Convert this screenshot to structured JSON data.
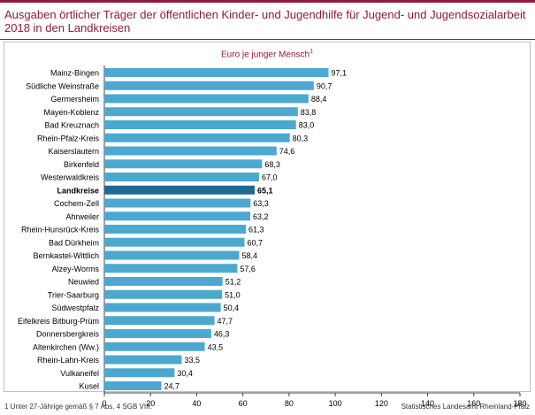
{
  "title": "Ausgaben örtlicher Träger der öffentlichen Kinder- und Jugendhilfe für Jugend- und Jugendsozialarbeit 2018 in den Landkreisen",
  "subtitle": "Euro je junger Mensch",
  "subtitle_marker": "1",
  "footnote": "1 Unter 27-Jährige gemäß § 7 Abs. 4 SGB VIII.",
  "source": "Statistisches Landesamt Rheinland-Pfalz",
  "colors": {
    "bar": "#4da8d0",
    "highlight": "#1f6a95",
    "accent": "#8e1b39"
  },
  "chart_data": {
    "type": "bar",
    "orientation": "horizontal",
    "title": "Euro je junger Mensch",
    "categories": [
      "Mainz-Bingen",
      "Südliche Weinstraße",
      "Germersheim",
      "Mayen-Koblenz",
      "Bad Kreuznach",
      "Rhein-Pfalz-Kreis",
      "Kaiserslautern",
      "Birkenfeld",
      "Westerwaldkreis",
      "Landkreise",
      "Cochem-Zell",
      "Ahrweiler",
      "Rhein-Hunsrück-Kreis",
      "Bad Dürkheim",
      "Bernkastel-Wittlich",
      "Alzey-Worms",
      "Neuwied",
      "Trier-Saarburg",
      "Südwestpfalz",
      "Eifelkreis Bitburg-Prüm",
      "Donnersbergkreis",
      "Altenkirchen (Ww.)",
      "Rhein-Lahn-Kreis",
      "Vulkaneifel",
      "Kusel"
    ],
    "values": [
      97.1,
      90.7,
      88.4,
      83.8,
      83.0,
      80.3,
      74.6,
      68.3,
      67.0,
      65.1,
      63.3,
      63.2,
      61.3,
      60.7,
      58.4,
      57.6,
      51.2,
      51.0,
      50.4,
      47.7,
      46.3,
      43.5,
      33.5,
      30.4,
      24.7
    ],
    "value_labels": [
      "97,1",
      "90,7",
      "88,4",
      "83,8",
      "83,0",
      "80,3",
      "74,6",
      "68,3",
      "67,0",
      "65,1",
      "63,3",
      "63,2",
      "61,3",
      "60,7",
      "58,4",
      "57,6",
      "51,2",
      "51,0",
      "50,4",
      "47,7",
      "46,3",
      "43,5",
      "33,5",
      "30,4",
      "24,7"
    ],
    "highlight": "Landkreise",
    "xlim": [
      0,
      180
    ],
    "xticks": [
      0,
      20,
      40,
      60,
      80,
      100,
      120,
      140,
      160,
      180
    ],
    "grid": false
  }
}
